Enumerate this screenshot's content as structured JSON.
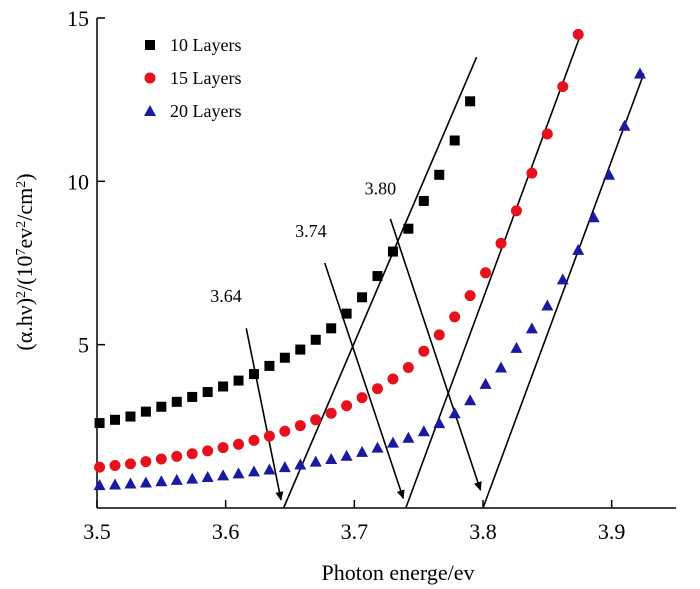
{
  "chart_data": {
    "type": "scatter",
    "title": "",
    "xlabel": "Photon energe/ev",
    "ylabel": "(α.hν)²/(10⁷ev²/cm²)",
    "ylabel_parts": {
      "pre": "(α.hν)",
      "sup1": "2",
      "mid": "/(10",
      "sup2": "7",
      "mid2": "ev",
      "sup3": "2",
      "mid3": "/cm",
      "sup4": "2",
      "post": ")"
    },
    "xlim": [
      3.5,
      3.95
    ],
    "ylim": [
      0,
      15
    ],
    "xticks": [
      3.5,
      3.6,
      3.7,
      3.8,
      3.9
    ],
    "xtick_labels": [
      "3.5",
      "3.6",
      "3.7",
      "3.8",
      "3.9"
    ],
    "yticks": [
      5,
      10,
      15
    ],
    "ytick_labels": [
      "5",
      "10",
      "15"
    ],
    "grid": false,
    "legend_position": "top-left",
    "series": [
      {
        "name": "10 Layers",
        "marker": "square",
        "color": "#000000",
        "x": [
          3.502,
          3.514,
          3.526,
          3.538,
          3.55,
          3.562,
          3.574,
          3.586,
          3.598,
          3.61,
          3.622,
          3.634,
          3.646,
          3.658,
          3.67,
          3.682,
          3.694,
          3.706,
          3.718,
          3.73,
          3.742,
          3.754,
          3.766,
          3.778,
          3.79
        ],
        "y": [
          2.6,
          2.7,
          2.8,
          2.95,
          3.1,
          3.25,
          3.4,
          3.55,
          3.72,
          3.9,
          4.1,
          4.35,
          4.6,
          4.85,
          5.15,
          5.5,
          5.95,
          6.45,
          7.1,
          7.85,
          8.55,
          9.4,
          10.2,
          11.25,
          12.45
        ]
      },
      {
        "name": "15 Layers",
        "marker": "circle",
        "color": "#e8101c",
        "x": [
          3.502,
          3.514,
          3.526,
          3.538,
          3.55,
          3.562,
          3.574,
          3.586,
          3.598,
          3.61,
          3.622,
          3.634,
          3.646,
          3.658,
          3.67,
          3.682,
          3.694,
          3.706,
          3.718,
          3.73,
          3.742,
          3.754,
          3.766,
          3.778,
          3.79,
          3.802,
          3.814,
          3.826,
          3.838,
          3.85,
          3.862,
          3.874
        ],
        "y": [
          1.25,
          1.3,
          1.35,
          1.42,
          1.5,
          1.58,
          1.66,
          1.75,
          1.85,
          1.95,
          2.07,
          2.2,
          2.35,
          2.52,
          2.7,
          2.9,
          3.13,
          3.38,
          3.65,
          3.95,
          4.3,
          4.8,
          5.3,
          5.85,
          6.5,
          7.2,
          8.1,
          9.1,
          10.25,
          11.45,
          12.9,
          14.5
        ]
      },
      {
        "name": "20 Layers",
        "marker": "triangle",
        "color": "#1a1aa0",
        "x": [
          3.502,
          3.514,
          3.526,
          3.538,
          3.55,
          3.562,
          3.574,
          3.586,
          3.598,
          3.61,
          3.622,
          3.634,
          3.646,
          3.658,
          3.67,
          3.682,
          3.694,
          3.706,
          3.718,
          3.73,
          3.742,
          3.754,
          3.766,
          3.778,
          3.79,
          3.802,
          3.814,
          3.826,
          3.838,
          3.85,
          3.862,
          3.874,
          3.886,
          3.898,
          3.91,
          3.922
        ],
        "y": [
          0.7,
          0.72,
          0.75,
          0.78,
          0.82,
          0.86,
          0.9,
          0.95,
          1.0,
          1.06,
          1.12,
          1.18,
          1.25,
          1.33,
          1.42,
          1.5,
          1.6,
          1.72,
          1.85,
          2.0,
          2.15,
          2.35,
          2.6,
          2.9,
          3.3,
          3.8,
          4.3,
          4.9,
          5.5,
          6.2,
          7.0,
          7.9,
          8.9,
          10.2,
          11.7,
          13.3
        ]
      }
    ],
    "fit_lines": [
      {
        "series": "10 Layers",
        "x0": 3.645,
        "y0": 0,
        "x1": 3.795,
        "y1": 13.8
      },
      {
        "series": "15 Layers",
        "x0": 3.74,
        "y0": 0,
        "x1": 3.875,
        "y1": 14.4
      },
      {
        "series": "20 Layers",
        "x0": 3.8,
        "y0": 0,
        "x1": 3.925,
        "y1": 13.3
      }
    ],
    "annotations": [
      {
        "text": "3.64",
        "text_x": 3.588,
        "text_y": 6.3,
        "arrow_from": [
          3.616,
          5.5
        ],
        "arrow_to": [
          3.643,
          0.25
        ]
      },
      {
        "text": "3.74",
        "text_x": 3.654,
        "text_y": 8.3,
        "arrow_from": [
          3.677,
          7.5
        ],
        "arrow_to": [
          3.738,
          0.3
        ]
      },
      {
        "text": "3.80",
        "text_x": 3.708,
        "text_y": 9.6,
        "arrow_from": [
          3.728,
          8.85
        ],
        "arrow_to": [
          3.798,
          0.55
        ]
      }
    ]
  }
}
